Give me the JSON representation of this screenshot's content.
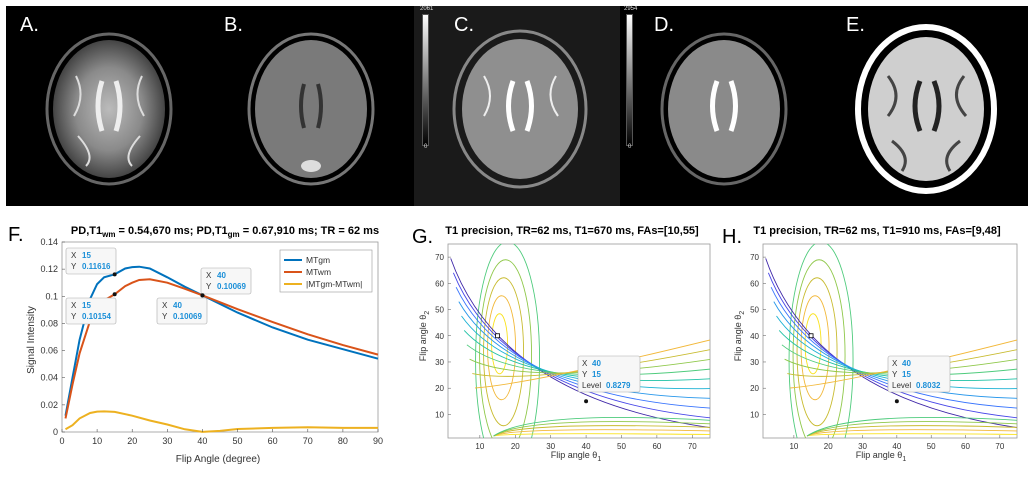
{
  "panels": {
    "A": {
      "label": "A."
    },
    "B": {
      "label": "B."
    },
    "C": {
      "label": "C.",
      "cbar_max": "2061",
      "cbar_min": "0"
    },
    "D": {
      "label": "D.",
      "cbar_max": "2954",
      "cbar_min": "0"
    },
    "E": {
      "label": "E."
    }
  },
  "chart_data": [
    {
      "id": "F",
      "panel_label": "F.",
      "type": "line",
      "title": "PD,T1wm = 0.54,670 ms; PD,T1gm = 0.67,910 ms; TR = 62 ms",
      "title_parts": {
        "a": "PD,T1",
        "a_sub": "wm",
        "b": " = 0.54,670 ms; PD,T1",
        "b_sub": "gm",
        "c": " = 0.67,910 ms; TR = 62 ms"
      },
      "xlabel": "Flip Angle (degree)",
      "ylabel": "Signal Intensity",
      "xlim": [
        0,
        90
      ],
      "ylim": [
        0,
        0.14
      ],
      "xticks": [
        0,
        10,
        20,
        30,
        40,
        50,
        60,
        70,
        80,
        90
      ],
      "yticks": [
        0,
        0.02,
        0.04,
        0.06,
        0.08,
        0.1,
        0.12,
        0.14
      ],
      "legend_position": "top-right",
      "series": [
        {
          "name": "MTgm",
          "color": "#0072BD",
          "x": [
            1,
            3,
            5,
            8,
            10,
            12,
            15,
            18,
            20,
            22,
            25,
            30,
            35,
            40,
            50,
            60,
            70,
            80,
            90
          ],
          "y": [
            0.012,
            0.04,
            0.068,
            0.098,
            0.109,
            0.114,
            0.1162,
            0.1205,
            0.1215,
            0.1218,
            0.1205,
            0.114,
            0.107,
            0.1007,
            0.088,
            0.077,
            0.068,
            0.061,
            0.054
          ]
        },
        {
          "name": "MTwm",
          "color": "#D95319",
          "x": [
            1,
            3,
            5,
            8,
            10,
            12,
            15,
            18,
            20,
            22,
            25,
            30,
            35,
            40,
            50,
            60,
            70,
            80,
            90
          ],
          "y": [
            0.01,
            0.035,
            0.058,
            0.082,
            0.092,
            0.097,
            0.1015,
            0.1075,
            0.11,
            0.112,
            0.1125,
            0.11,
            0.1055,
            0.1007,
            0.0905,
            0.081,
            0.072,
            0.064,
            0.057
          ]
        },
        {
          "name": "|MTgm-MTwm|",
          "color": "#EDB120",
          "x": [
            1,
            3,
            5,
            8,
            10,
            12,
            15,
            20,
            25,
            30,
            35,
            40,
            45,
            50,
            60,
            70,
            80,
            90
          ],
          "y": [
            0.002,
            0.005,
            0.01,
            0.014,
            0.015,
            0.0152,
            0.0148,
            0.012,
            0.0085,
            0.0055,
            0.002,
            0.0001,
            0.0008,
            0.0022,
            0.003,
            0.0035,
            0.003,
            0.003
          ]
        }
      ],
      "datatips": [
        {
          "x_label": "X",
          "x": "15",
          "y_label": "Y",
          "y": "0.11616"
        },
        {
          "x_label": "X",
          "x": "15",
          "y_label": "Y",
          "y": "0.10154"
        },
        {
          "x_label": "X",
          "x": "40",
          "y_label": "Y",
          "y": "0.10069"
        },
        {
          "x_label": "X",
          "x": "40",
          "y_label": "Y",
          "y": "0.10069"
        }
      ]
    },
    {
      "id": "G",
      "panel_label": "G.",
      "type": "contour",
      "title": "T1 precision, TR=62 ms, T1=670 ms, FAs=[10,55]",
      "xlabel": "Flip angle θ1",
      "xlabel_parts": {
        "a": "Flip angle θ",
        "sub": "1"
      },
      "ylabel": "Flip angle θ2",
      "ylabel_parts": {
        "a": "Flip angle θ",
        "sub": "2"
      },
      "xlim": [
        1,
        75
      ],
      "ylim": [
        1,
        75
      ],
      "xticks": [
        10,
        20,
        30,
        40,
        50,
        60,
        70
      ],
      "yticks": [
        10,
        20,
        30,
        40,
        50,
        60,
        70
      ],
      "optimum_marker": [
        15,
        40
      ],
      "datatip": {
        "x_label": "X",
        "x": "40",
        "y_label": "Y",
        "y": "15",
        "level_label": "Level",
        "level": "0.8279"
      }
    },
    {
      "id": "H",
      "panel_label": "H.",
      "type": "contour",
      "title": "T1 precision, TR=62 ms, T1=910 ms, FAs=[9,48]",
      "xlabel": "Flip angle θ1",
      "xlabel_parts": {
        "a": "Flip angle θ",
        "sub": "1"
      },
      "ylabel": "Flip angle θ2",
      "ylabel_parts": {
        "a": "Flip angle θ",
        "sub": "2"
      },
      "xlim": [
        1,
        75
      ],
      "ylim": [
        1,
        75
      ],
      "xticks": [
        10,
        20,
        30,
        40,
        50,
        60,
        70
      ],
      "yticks": [
        10,
        20,
        30,
        40,
        50,
        60,
        70
      ],
      "optimum_marker": [
        15,
        40
      ],
      "datatip": {
        "x_label": "X",
        "x": "40",
        "y_label": "Y",
        "y": "15",
        "level_label": "Level",
        "level": "0.8032"
      }
    }
  ]
}
